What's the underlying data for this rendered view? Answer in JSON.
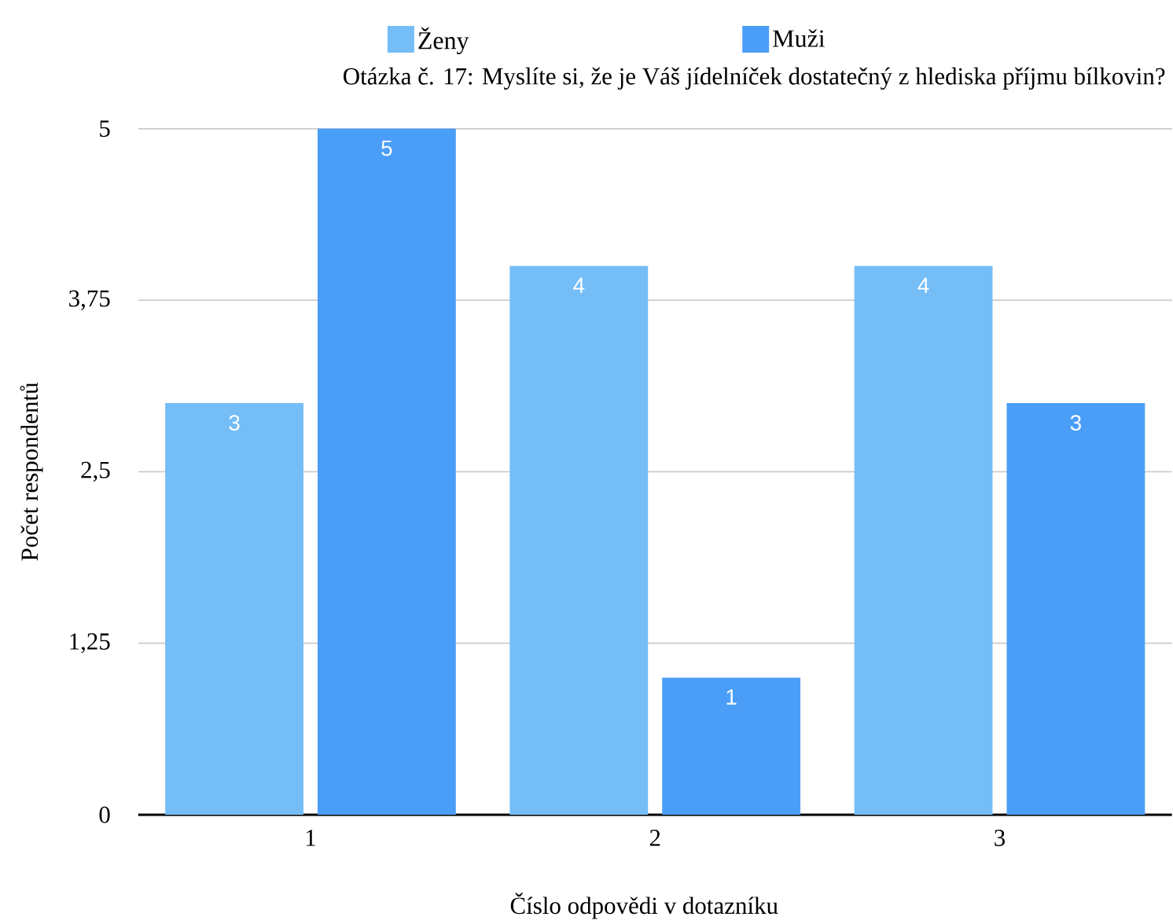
{
  "chart_data": {
    "type": "bar",
    "title": "Otázka č. 17: Myslíte si, že je Váš jídelníček dostatečný z hlediska příjmu bílkovin?",
    "xlabel": "Číslo odpovědi v dotazníku",
    "ylabel": "Počet respondentů",
    "categories": [
      "1",
      "2",
      "3"
    ],
    "series": [
      {
        "name": "Ženy",
        "color": "#74bdf7",
        "values": [
          3,
          4,
          4
        ]
      },
      {
        "name": "Muži",
        "color": "#4a9ef7",
        "values": [
          5,
          1,
          3
        ]
      }
    ],
    "ylim": [
      0,
      5
    ],
    "yticks": [
      0,
      {
        "value": 1.25,
        "label": "1,25"
      },
      {
        "value": 2.5,
        "label": "2,5"
      },
      {
        "value": 3.75,
        "label": "3,75"
      },
      5
    ],
    "grid": "y",
    "legend": "top",
    "data_labels": true
  }
}
